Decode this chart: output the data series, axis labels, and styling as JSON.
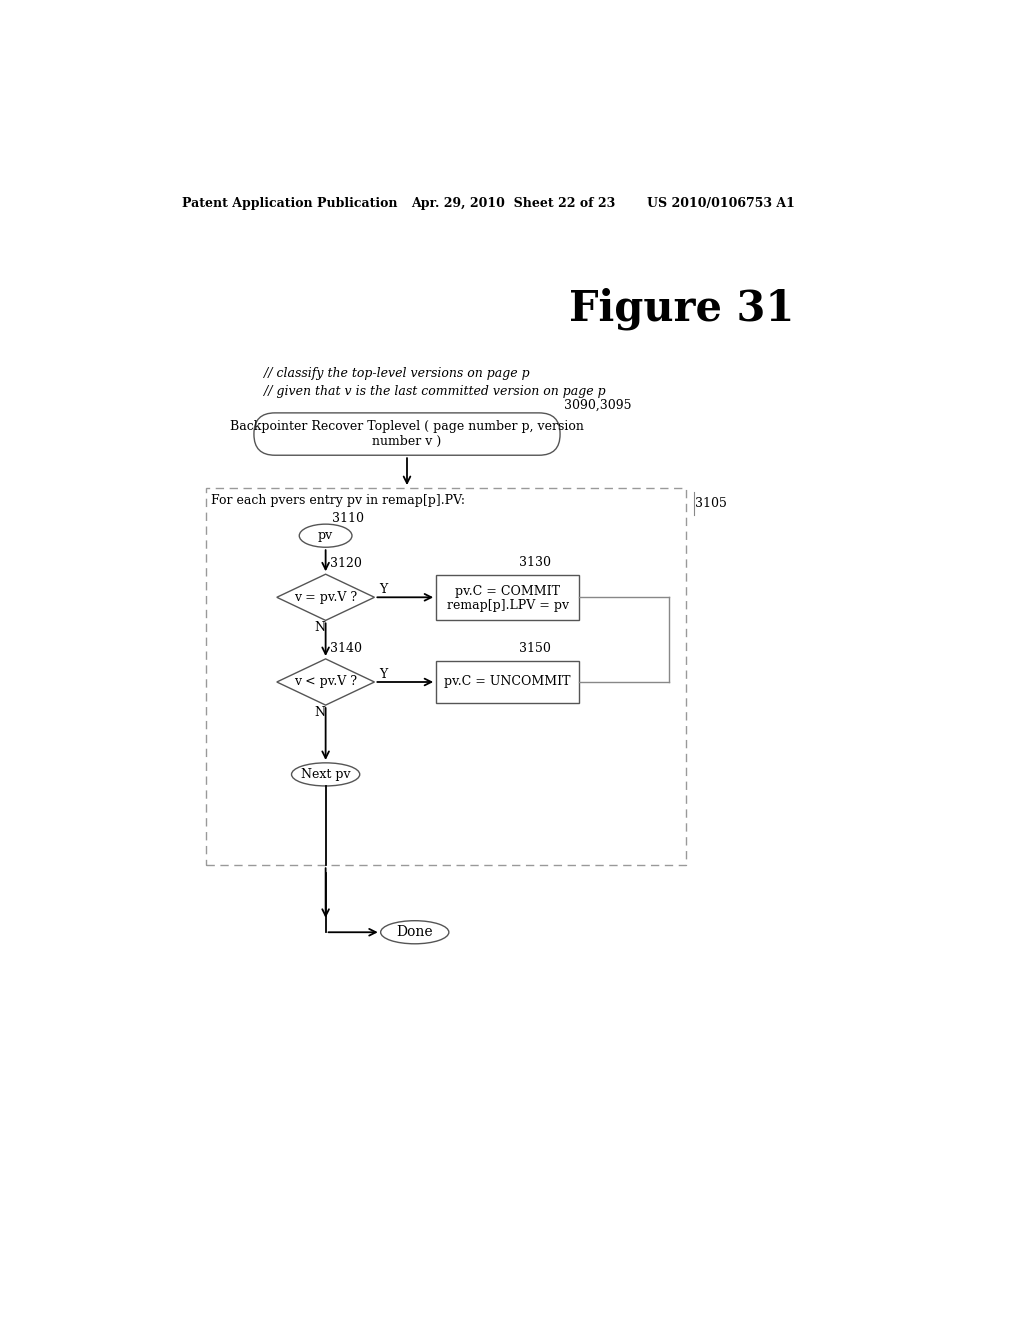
{
  "bg_color": "#ffffff",
  "header_left": "Patent Application Publication",
  "header_mid": "Apr. 29, 2010  Sheet 22 of 23",
  "header_right": "US 2010/0106753 A1",
  "figure_title": "Figure 31",
  "comment1": "// classify the top-level versions on page p",
  "comment2": "// given that v is the last committed version on page p",
  "label_3090": "3090,3095",
  "start_box_text": "Backpointer Recover Toplevel ( page number p, version\nnumber v )",
  "loop_label": "For each pvers entry pv in remap[p].PV:",
  "label_3105": "3105",
  "label_3110": "3110",
  "pv_text": "pv",
  "label_3120": "3120",
  "diamond1_text": "v = pv.V ?",
  "y_label": "Y",
  "n_label": "N",
  "label_3130": "3130",
  "box1_line1": "pv.C = COMMIT",
  "box1_line2": "remap[p].LPV = pv",
  "label_3140": "3140",
  "diamond2_text": "v < pv.V ?",
  "label_3150": "3150",
  "box2_text": "pv.C = UNCOMMIT",
  "next_pv_text": "Next pv",
  "done_text": "Done",
  "header_fontsize": 9,
  "body_fontsize": 9,
  "title_fontsize": 30,
  "label_fontsize": 9
}
